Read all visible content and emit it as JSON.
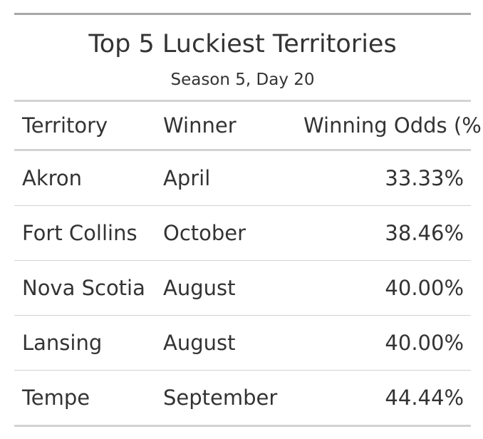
{
  "table": {
    "title": "Top 5 Luckiest Territories",
    "subtitle": "Season 5, Day 20",
    "headers": {
      "territory": "Territory",
      "winner": "Winner",
      "odds": "Winning Odds (%)"
    },
    "rows": [
      {
        "territory": "Akron",
        "winner": "April",
        "odds": "33.33%"
      },
      {
        "territory": "Fort Collins",
        "winner": "October",
        "odds": "38.46%"
      },
      {
        "territory": "Nova Scotia",
        "winner": "August",
        "odds": "40.00%"
      },
      {
        "territory": "Lansing",
        "winner": "August",
        "odds": "40.00%"
      },
      {
        "territory": "Tempe",
        "winner": "September",
        "odds": "44.44%"
      }
    ]
  }
}
